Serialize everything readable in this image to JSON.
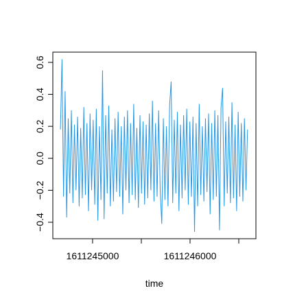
{
  "chart_data": {
    "type": "line",
    "x_label": "time",
    "x": [
      1611244670,
      1611244686,
      1611244702,
      1611244718,
      1611244734,
      1611244750,
      1611244766,
      1611244782,
      1611244798,
      1611244814,
      1611244830,
      1611244846,
      1611244862,
      1611244878,
      1611244894,
      1611244910,
      1611244926,
      1611244942,
      1611244958,
      1611244974,
      1611244990,
      1611245006,
      1611245022,
      1611245038,
      1611245054,
      1611245070,
      1611245086,
      1611245102,
      1611245118,
      1611245134,
      1611245150,
      1611245166,
      1611245182,
      1611245198,
      1611245214,
      1611245230,
      1611245246,
      1611245262,
      1611245278,
      1611245294,
      1611245310,
      1611245326,
      1611245342,
      1611245358,
      1611245374,
      1611245390,
      1611245406,
      1611245422,
      1611245438,
      1611245454,
      1611245470,
      1611245486,
      1611245502,
      1611245518,
      1611245534,
      1611245550,
      1611245566,
      1611245582,
      1611245598,
      1611245614,
      1611245630,
      1611245646,
      1611245662,
      1611245678,
      1611245694,
      1611245710,
      1611245726,
      1611245742,
      1611245758,
      1611245774,
      1611245790,
      1611245806,
      1611245822,
      1611245838,
      1611245854,
      1611245870,
      1611245886,
      1611245902,
      1611245918,
      1611245934,
      1611245950,
      1611245966,
      1611245982,
      1611245998,
      1611246014,
      1611246030,
      1611246046,
      1611246062,
      1611246078,
      1611246094,
      1611246110,
      1611246126,
      1611246142,
      1611246158,
      1611246174,
      1611246190,
      1611246206,
      1611246222,
      1611246238,
      1611246254,
      1611246270,
      1611246286,
      1611246302,
      1611246318,
      1611246334,
      1611246350,
      1611246366,
      1611246382,
      1611246398,
      1611246414,
      1611246430,
      1611246446,
      1611246462,
      1611246478,
      1611246494,
      1611246510,
      1611246526,
      1611246542,
      1611246558,
      1611246574,
      1611246590
    ],
    "values": [
      0.18,
      0.62,
      -0.24,
      0.42,
      -0.37,
      0.25,
      -0.22,
      0.3,
      -0.28,
      0.21,
      -0.2,
      0.26,
      -0.3,
      0.19,
      -0.25,
      0.32,
      -0.23,
      0.22,
      -0.33,
      0.28,
      -0.2,
      0.24,
      -0.29,
      0.31,
      -0.39,
      0.2,
      -0.26,
      0.55,
      -0.38,
      0.27,
      -0.22,
      0.33,
      -0.3,
      0.18,
      -0.27,
      0.25,
      -0.21,
      0.29,
      -0.24,
      0.2,
      -0.35,
      0.26,
      -0.2,
      0.3,
      -0.28,
      0.22,
      -0.23,
      0.34,
      -0.26,
      0.19,
      -0.31,
      0.27,
      -0.22,
      0.23,
      -0.29,
      0.21,
      -0.25,
      0.28,
      -0.2,
      0.36,
      -0.27,
      0.22,
      -0.24,
      0.3,
      -0.21,
      -0.41,
      0.25,
      -0.26,
      0.2,
      -0.3,
      0.33,
      0.48,
      -0.28,
      0.24,
      -0.22,
      0.29,
      -0.33,
      0.21,
      -0.25,
      0.27,
      -0.2,
      0.31,
      -0.29,
      0.23,
      -0.24,
      0.26,
      -0.46,
      0.22,
      -0.3,
      0.34,
      -0.23,
      0.2,
      -0.27,
      0.25,
      -0.21,
      0.28,
      -0.35,
      0.22,
      -0.26,
      0.3,
      -0.24,
      0.27,
      -0.45,
      0.32,
      0.44,
      -0.3,
      0.23,
      -0.22,
      0.26,
      -0.28,
      0.35,
      -0.25,
      0.21,
      -0.33,
      0.29,
      -0.24,
      0.22,
      -0.27,
      0.25,
      -0.2,
      0.18
    ],
    "color": "#2396e6",
    "xlim": [
      1611244592,
      1611246676
    ],
    "xticks": [
      1611245000,
      {
        "value": 1611245500,
        "label": null
      },
      1611246000,
      {
        "value": 1611246500,
        "label": null
      }
    ],
    "ylim": [
      -0.503,
      0.664
    ],
    "yticks": [
      {
        "value": -0.4,
        "label": "−0.4"
      },
      {
        "value": -0.2,
        "label": "−0.2"
      },
      {
        "value": 0,
        "label": "0.0"
      },
      0.2,
      0.4,
      0.6
    ]
  }
}
